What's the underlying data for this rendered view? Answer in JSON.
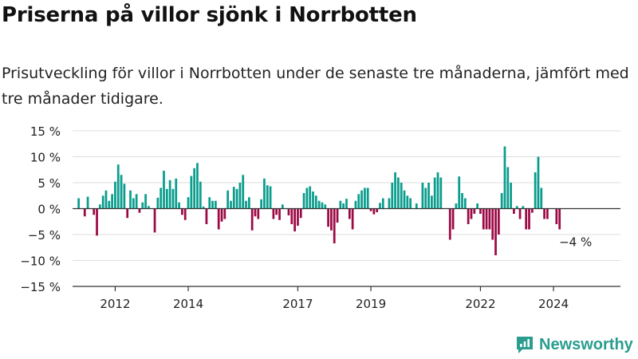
{
  "title": "Priserna på villor sjönk i Norrbotten",
  "subtitle": "Prisutveckling för villor i Norrbotten under de senaste tre månaderna, jämfört med tre månader tidigare.",
  "brand": {
    "name": "Newsworthy",
    "icon": "newsworthy-chart-logo-icon"
  },
  "colors": {
    "positive": "#0a9d8e",
    "negative": "#9c0a46",
    "grid": "#dddddd",
    "axis": "#333333",
    "text": "#222222"
  },
  "chart_data": {
    "type": "bar",
    "x_start": "2011-01",
    "x_step": "month",
    "xlim": [
      "2010-11",
      "2025-11"
    ],
    "ylim": [
      -15,
      15
    ],
    "yticks": [
      15,
      10,
      5,
      0,
      -5,
      -10,
      -15
    ],
    "ytick_labels": [
      "15 %",
      "10 %",
      "5 %",
      "0 %",
      "−5 %",
      "−10 %",
      "−15 %"
    ],
    "xticks": [
      "2012-01",
      "2014-01",
      "2017-01",
      "2019-01",
      "2022-01",
      "2024-01"
    ],
    "xtick_labels": [
      "2012",
      "2014",
      "2017",
      "2019",
      "2022",
      "2024"
    ],
    "grid": true,
    "last_value_label": "−4 %",
    "values": [
      2,
      0,
      -1.5,
      2.3,
      0,
      -1.2,
      -5.2,
      0.8,
      2.5,
      3.5,
      1.5,
      2.8,
      5.2,
      8.5,
      6.5,
      4.8,
      -1.8,
      3.5,
      2,
      2.8,
      -0.8,
      1.2,
      2.8,
      0.5,
      0,
      -4.6,
      2.1,
      4,
      7.3,
      3.8,
      5.5,
      3.8,
      5.8,
      1.2,
      -1.2,
      -2.2,
      2.2,
      6.3,
      7.8,
      8.8,
      5.2,
      0.4,
      -3,
      2.2,
      1.5,
      1.5,
      -4,
      -2.5,
      -2,
      3.5,
      1.5,
      4.2,
      3.8,
      5,
      6.5,
      1.5,
      2.2,
      -4.2,
      -1.5,
      -2,
      1.8,
      5.8,
      4.5,
      4.3,
      -2,
      -1.2,
      -2.2,
      0.8,
      0,
      -1.3,
      -3,
      -4.4,
      -3.3,
      -1.8,
      3,
      4,
      4.3,
      3.3,
      2.5,
      1.5,
      1.2,
      0.8,
      -3.5,
      -4.2,
      -6.7,
      -2.7,
      1.5,
      1,
      1.9,
      -2,
      -4,
      1.5,
      2.8,
      3.5,
      4,
      4,
      -0.5,
      -1.1,
      -0.7,
      1.1,
      2,
      0,
      2,
      5,
      7,
      6,
      5,
      3.5,
      2.5,
      2,
      0,
      1,
      0,
      5,
      4,
      5,
      2.5,
      6,
      7,
      6,
      0,
      0,
      -6,
      -4,
      1,
      6.2,
      3,
      2,
      -3,
      -2,
      -1,
      1,
      -1,
      -4,
      -4,
      -4,
      -6,
      -9,
      -5,
      3,
      12,
      8,
      5,
      -1,
      0.5,
      -2,
      0.5,
      -4,
      -4,
      -0.8,
      7,
      10,
      4,
      -2,
      -2,
      0,
      0,
      -3,
      -4
    ]
  }
}
